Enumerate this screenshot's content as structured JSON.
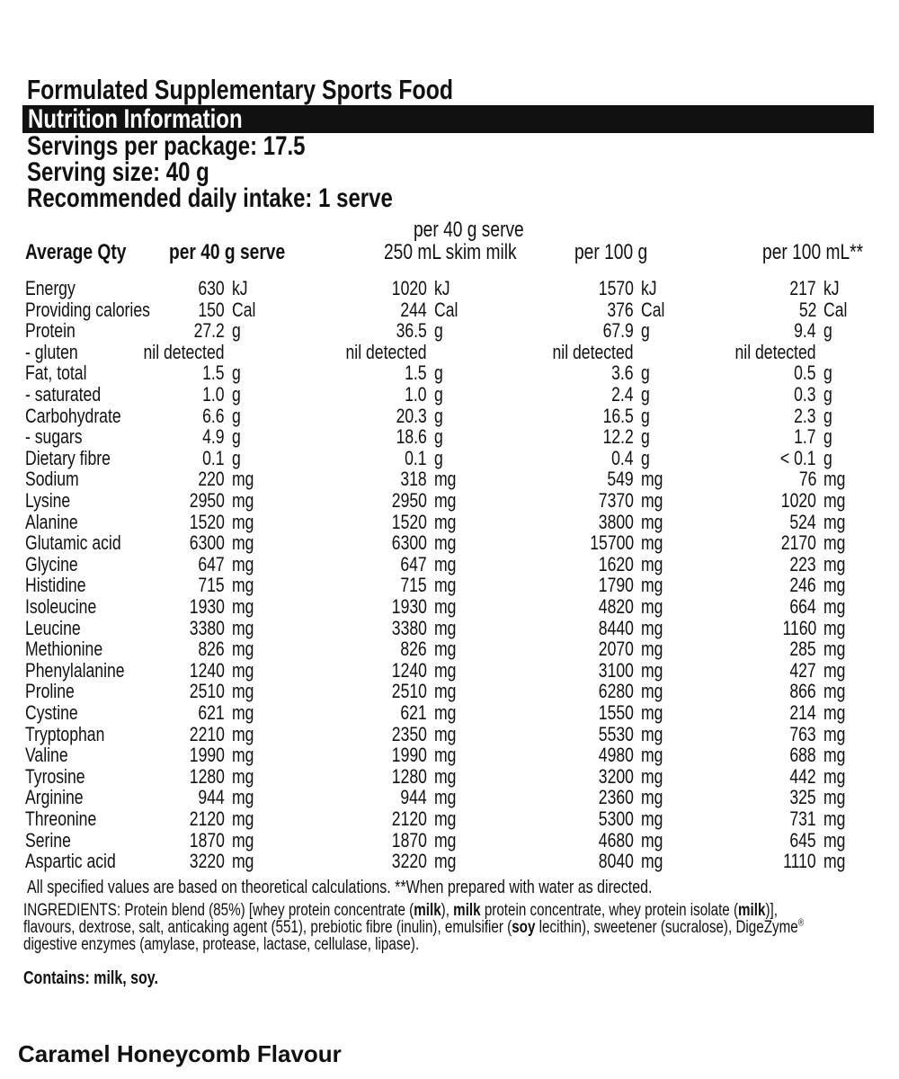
{
  "header": {
    "title": "Formulated Supplementary Sports Food",
    "banner": "Nutrition Information",
    "servings": [
      "Servings per package: 17.5",
      "Serving size: 40 g",
      "Recommended daily intake: 1 serve"
    ]
  },
  "table": {
    "headers": [
      "Average Qty",
      "per 40 g serve",
      [
        "per 40 g serve",
        "250 mL skim milk"
      ],
      "per 100 g",
      "per 100 mL**"
    ],
    "rows": [
      [
        "Energy",
        [
          "630",
          "kJ"
        ],
        [
          "1020",
          "kJ"
        ],
        [
          "1570",
          "kJ"
        ],
        [
          "217",
          "kJ"
        ]
      ],
      [
        "Providing calories",
        [
          "150",
          "Cal"
        ],
        [
          "244",
          "Cal"
        ],
        [
          "376",
          "Cal"
        ],
        [
          "52",
          "Cal"
        ]
      ],
      [
        "Protein",
        [
          "27.2",
          "g"
        ],
        [
          "36.5",
          "g"
        ],
        [
          "67.9",
          "g"
        ],
        [
          "9.4",
          "g"
        ]
      ],
      [
        "- gluten",
        [
          "nil detected"
        ],
        [
          "nil detected"
        ],
        [
          "nil detected"
        ],
        [
          "nil detected"
        ]
      ],
      [
        "Fat, total",
        [
          "1.5",
          "g"
        ],
        [
          "1.5",
          "g"
        ],
        [
          "3.6",
          "g"
        ],
        [
          "0.5",
          "g"
        ]
      ],
      [
        "- saturated",
        [
          "1.0",
          "g"
        ],
        [
          "1.0",
          "g"
        ],
        [
          "2.4",
          "g"
        ],
        [
          "0.3",
          "g"
        ]
      ],
      [
        "Carbohydrate",
        [
          "6.6",
          "g"
        ],
        [
          "20.3",
          "g"
        ],
        [
          "16.5",
          "g"
        ],
        [
          "2.3",
          "g"
        ]
      ],
      [
        "- sugars",
        [
          "4.9",
          "g"
        ],
        [
          "18.6",
          "g"
        ],
        [
          "12.2",
          "g"
        ],
        [
          "1.7",
          "g"
        ]
      ],
      [
        "Dietary fibre",
        [
          "0.1",
          "g"
        ],
        [
          "0.1",
          "g"
        ],
        [
          "0.4",
          "g"
        ],
        [
          "< 0.1",
          "g"
        ]
      ],
      [
        "Sodium",
        [
          "220",
          "mg"
        ],
        [
          "318",
          "mg"
        ],
        [
          "549",
          "mg"
        ],
        [
          "76",
          "mg"
        ]
      ],
      [
        "Lysine",
        [
          "2950",
          "mg"
        ],
        [
          "2950",
          "mg"
        ],
        [
          "7370",
          "mg"
        ],
        [
          "1020",
          "mg"
        ]
      ],
      [
        "Alanine",
        [
          "1520",
          "mg"
        ],
        [
          "1520",
          "mg"
        ],
        [
          "3800",
          "mg"
        ],
        [
          "524",
          "mg"
        ]
      ],
      [
        "Glutamic acid",
        [
          "6300",
          "mg"
        ],
        [
          "6300",
          "mg"
        ],
        [
          "15700",
          "mg"
        ],
        [
          "2170",
          "mg"
        ]
      ],
      [
        "Glycine",
        [
          "647",
          "mg"
        ],
        [
          "647",
          "mg"
        ],
        [
          "1620",
          "mg"
        ],
        [
          "223",
          "mg"
        ]
      ],
      [
        "Histidine",
        [
          "715",
          "mg"
        ],
        [
          "715",
          "mg"
        ],
        [
          "1790",
          "mg"
        ],
        [
          "246",
          "mg"
        ]
      ],
      [
        "Isoleucine",
        [
          "1930",
          "mg"
        ],
        [
          "1930",
          "mg"
        ],
        [
          "4820",
          "mg"
        ],
        [
          "664",
          "mg"
        ]
      ],
      [
        "Leucine",
        [
          "3380",
          "mg"
        ],
        [
          "3380",
          "mg"
        ],
        [
          "8440",
          "mg"
        ],
        [
          "1160",
          "mg"
        ]
      ],
      [
        "Methionine",
        [
          "826",
          "mg"
        ],
        [
          "826",
          "mg"
        ],
        [
          "2070",
          "mg"
        ],
        [
          "285",
          "mg"
        ]
      ],
      [
        "Phenylalanine",
        [
          "1240",
          "mg"
        ],
        [
          "1240",
          "mg"
        ],
        [
          "3100",
          "mg"
        ],
        [
          "427",
          "mg"
        ]
      ],
      [
        "Proline",
        [
          "2510",
          "mg"
        ],
        [
          "2510",
          "mg"
        ],
        [
          "6280",
          "mg"
        ],
        [
          "866",
          "mg"
        ]
      ],
      [
        "Cystine",
        [
          "621",
          "mg"
        ],
        [
          "621",
          "mg"
        ],
        [
          "1550",
          "mg"
        ],
        [
          "214",
          "mg"
        ]
      ],
      [
        "Tryptophan",
        [
          "2210",
          "mg"
        ],
        [
          "2350",
          "mg"
        ],
        [
          "5530",
          "mg"
        ],
        [
          "763",
          "mg"
        ]
      ],
      [
        "Valine",
        [
          "1990",
          "mg"
        ],
        [
          "1990",
          "mg"
        ],
        [
          "4980",
          "mg"
        ],
        [
          "688",
          "mg"
        ]
      ],
      [
        "Tyrosine",
        [
          "1280",
          "mg"
        ],
        [
          "1280",
          "mg"
        ],
        [
          "3200",
          "mg"
        ],
        [
          "442",
          "mg"
        ]
      ],
      [
        "Arginine",
        [
          "944",
          "mg"
        ],
        [
          "944",
          "mg"
        ],
        [
          "2360",
          "mg"
        ],
        [
          "325",
          "mg"
        ]
      ],
      [
        "Threonine",
        [
          "2120",
          "mg"
        ],
        [
          "2120",
          "mg"
        ],
        [
          "5300",
          "mg"
        ],
        [
          "731",
          "mg"
        ]
      ],
      [
        "Serine",
        [
          "1870",
          "mg"
        ],
        [
          "1870",
          "mg"
        ],
        [
          "4680",
          "mg"
        ],
        [
          "645",
          "mg"
        ]
      ],
      [
        "Aspartic acid",
        [
          "3220",
          "mg"
        ],
        [
          "3220",
          "mg"
        ],
        [
          "8040",
          "mg"
        ],
        [
          "1110",
          "mg"
        ]
      ]
    ]
  },
  "footnote": "All specified values are based on theoretical calculations. **When prepared with water as directed.",
  "ingredients": [
    [
      "INGREDIENTS: Protein blend (85%) [whey protein concentrate (",
      "normal"
    ],
    [
      "milk",
      "bold"
    ],
    [
      "), ",
      "normal"
    ],
    [
      "milk",
      "bold"
    ],
    [
      " protein concentrate, whey protein isolate (",
      "normal"
    ],
    [
      "milk",
      "bold"
    ],
    [
      ")], flavours, dextrose, salt, anticaking agent (551), prebiotic fibre (inulin), emulsifier (",
      "normal"
    ],
    [
      "soy",
      "bold"
    ],
    [
      " lecithin), sweetener (sucralose), DigeZyme",
      "normal"
    ],
    [
      "®",
      "sup"
    ],
    [
      " digestive enzymes (amylase, protease, lactase, cellulase, lipase).",
      "normal"
    ]
  ],
  "contains": "Contains: milk, soy.",
  "flavour": "Caramel Honeycomb Flavour"
}
